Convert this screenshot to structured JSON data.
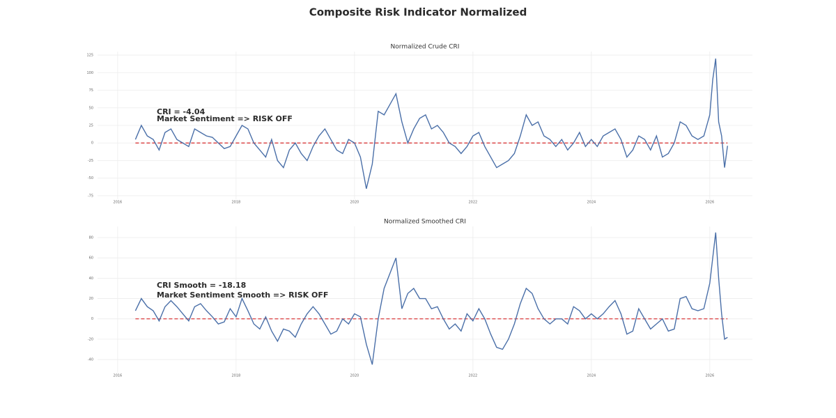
{
  "title": "Composite Risk Indicator Normalized",
  "chart_data": [
    {
      "type": "line",
      "title": "Normalized Crude CRI",
      "x": [
        2016.3,
        2016.4,
        2016.5,
        2016.6,
        2016.7,
        2016.8,
        2016.9,
        2017.0,
        2017.1,
        2017.2,
        2017.3,
        2017.4,
        2017.5,
        2017.6,
        2017.7,
        2017.8,
        2017.9,
        2018.0,
        2018.1,
        2018.2,
        2018.3,
        2018.4,
        2018.5,
        2018.6,
        2018.7,
        2018.8,
        2018.9,
        2019.0,
        2019.1,
        2019.2,
        2019.3,
        2019.4,
        2019.5,
        2019.6,
        2019.7,
        2019.8,
        2019.9,
        2020.0,
        2020.1,
        2020.2,
        2020.3,
        2020.4,
        2020.5,
        2020.6,
        2020.7,
        2020.8,
        2020.9,
        2021.0,
        2021.1,
        2021.2,
        2021.3,
        2021.4,
        2021.5,
        2021.6,
        2021.7,
        2021.8,
        2021.9,
        2022.0,
        2022.1,
        2022.2,
        2022.3,
        2022.4,
        2022.5,
        2022.6,
        2022.7,
        2022.8,
        2022.9,
        2023.0,
        2023.1,
        2023.2,
        2023.3,
        2023.4,
        2023.5,
        2023.6,
        2023.7,
        2023.8,
        2023.9,
        2024.0,
        2024.1,
        2024.2,
        2024.3,
        2024.4,
        2024.5,
        2024.6,
        2024.7,
        2024.8,
        2024.9,
        2025.0,
        2025.1,
        2025.2,
        2025.3,
        2025.4,
        2025.5,
        2025.6,
        2025.7,
        2025.8,
        2025.9,
        2026.0,
        2026.05,
        2026.1,
        2026.15,
        2026.2,
        2026.25,
        2026.3
      ],
      "values": [
        5,
        25,
        10,
        5,
        -10,
        15,
        20,
        5,
        0,
        -5,
        20,
        15,
        10,
        8,
        0,
        -8,
        -5,
        10,
        25,
        20,
        0,
        -10,
        -20,
        5,
        -25,
        -35,
        -10,
        0,
        -15,
        -25,
        -5,
        10,
        20,
        5,
        -10,
        -15,
        5,
        0,
        -20,
        -65,
        -30,
        45,
        40,
        55,
        70,
        30,
        0,
        20,
        35,
        40,
        20,
        25,
        15,
        0,
        -5,
        -15,
        -5,
        10,
        15,
        -5,
        -20,
        -35,
        -30,
        -25,
        -15,
        10,
        40,
        25,
        30,
        10,
        5,
        -5,
        5,
        -10,
        0,
        15,
        -5,
        5,
        -5,
        10,
        15,
        20,
        5,
        -20,
        -10,
        10,
        5,
        -10,
        10,
        -20,
        -15,
        0,
        30,
        25,
        10,
        5,
        10,
        40,
        90,
        120,
        30,
        10,
        -35,
        -4.04
      ],
      "color": "#4a6fa8",
      "xlim": [
        2015.66,
        2026.72
      ],
      "xticks": [
        2016,
        2018,
        2020,
        2022,
        2024,
        2026
      ],
      "ylim": [
        -80,
        130
      ],
      "yticks": [
        -75,
        -50,
        -25,
        0,
        25,
        50,
        75,
        100,
        125
      ],
      "grid": true,
      "reference_line": {
        "value": 0,
        "color": "#d62728"
      },
      "annotations": [
        "CRI = -4.04",
        "Market Sentiment => RISK OFF"
      ]
    },
    {
      "type": "line",
      "title": "Normalized Smoothed CRI",
      "x": [
        2016.3,
        2016.4,
        2016.5,
        2016.6,
        2016.7,
        2016.8,
        2016.9,
        2017.0,
        2017.1,
        2017.2,
        2017.3,
        2017.4,
        2017.5,
        2017.6,
        2017.7,
        2017.8,
        2017.9,
        2018.0,
        2018.1,
        2018.2,
        2018.3,
        2018.4,
        2018.5,
        2018.6,
        2018.7,
        2018.8,
        2018.9,
        2019.0,
        2019.1,
        2019.2,
        2019.3,
        2019.4,
        2019.5,
        2019.6,
        2019.7,
        2019.8,
        2019.9,
        2020.0,
        2020.1,
        2020.2,
        2020.3,
        2020.4,
        2020.5,
        2020.6,
        2020.7,
        2020.8,
        2020.9,
        2021.0,
        2021.1,
        2021.2,
        2021.3,
        2021.4,
        2021.5,
        2021.6,
        2021.7,
        2021.8,
        2021.9,
        2022.0,
        2022.1,
        2022.2,
        2022.3,
        2022.4,
        2022.5,
        2022.6,
        2022.7,
        2022.8,
        2022.9,
        2023.0,
        2023.1,
        2023.2,
        2023.3,
        2023.4,
        2023.5,
        2023.6,
        2023.7,
        2023.8,
        2023.9,
        2024.0,
        2024.1,
        2024.2,
        2024.3,
        2024.4,
        2024.5,
        2024.6,
        2024.7,
        2024.8,
        2024.9,
        2025.0,
        2025.1,
        2025.2,
        2025.3,
        2025.4,
        2025.5,
        2025.6,
        2025.7,
        2025.8,
        2025.9,
        2026.0,
        2026.05,
        2026.1,
        2026.15,
        2026.2,
        2026.25,
        2026.3
      ],
      "values": [
        8,
        20,
        12,
        8,
        -2,
        12,
        18,
        12,
        5,
        -2,
        12,
        15,
        8,
        2,
        -5,
        -3,
        10,
        2,
        20,
        8,
        -5,
        -10,
        2,
        -12,
        -22,
        -10,
        -12,
        -18,
        -5,
        5,
        12,
        5,
        -5,
        -15,
        -12,
        0,
        -5,
        5,
        2,
        -25,
        -45,
        0,
        30,
        45,
        60,
        10,
        25,
        30,
        20,
        20,
        10,
        12,
        0,
        -10,
        -5,
        -12,
        5,
        -2,
        10,
        0,
        -15,
        -28,
        -30,
        -20,
        -5,
        15,
        30,
        25,
        10,
        0,
        -5,
        0,
        0,
        -5,
        12,
        8,
        0,
        5,
        0,
        5,
        12,
        18,
        5,
        -15,
        -12,
        10,
        0,
        -10,
        -5,
        0,
        -12,
        -10,
        20,
        22,
        10,
        8,
        10,
        35,
        60,
        85,
        40,
        5,
        -20,
        -18.18
      ],
      "color": "#4a6fa8",
      "xlim": [
        2015.66,
        2026.72
      ],
      "xticks": [
        2016,
        2018,
        2020,
        2022,
        2024,
        2026
      ],
      "ylim": [
        -53,
        91
      ],
      "yticks": [
        -40,
        -20,
        0,
        20,
        40,
        60,
        80
      ],
      "grid": true,
      "reference_line": {
        "value": 0,
        "color": "#d62728"
      },
      "annotations": [
        "CRI Smooth = -18.18",
        "Market Sentiment Smooth => RISK OFF"
      ]
    }
  ]
}
